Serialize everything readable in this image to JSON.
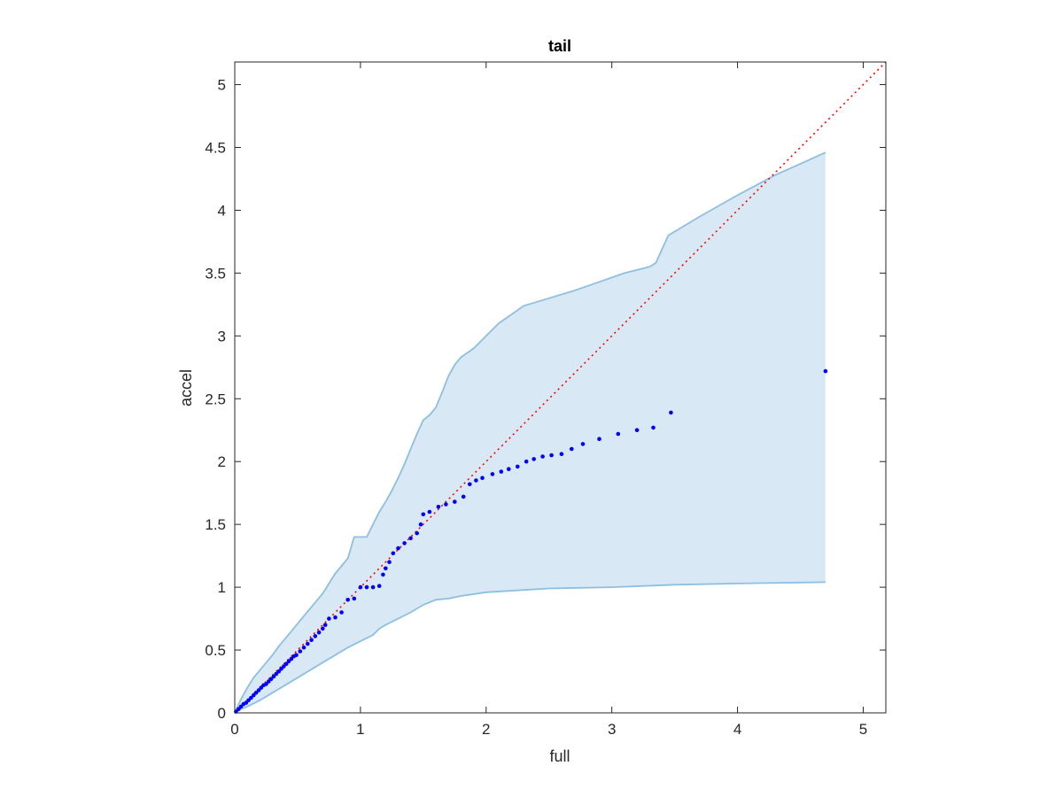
{
  "chart_data": {
    "type": "scatter",
    "title": "tail",
    "xlabel": "full",
    "ylabel": "accel",
    "xlim": [
      0,
      5.18
    ],
    "ylim": [
      0,
      5.18
    ],
    "grid": false,
    "box": true,
    "xticks": [
      0,
      1,
      2,
      3,
      4,
      5
    ],
    "yticks": [
      0,
      0.5,
      1,
      1.5,
      2,
      2.5,
      3,
      3.5,
      4,
      4.5,
      5
    ],
    "xtick_labels": [
      "0",
      "1",
      "2",
      "3",
      "4",
      "5"
    ],
    "ytick_labels": [
      "0",
      "0.5",
      "1",
      "1.5",
      "2",
      "2.5",
      "3",
      "3.5",
      "4",
      "4.5",
      "5"
    ],
    "colors": {
      "points": "#0000ff",
      "reference_line": "#ff0000",
      "band_fill": "#d9e8f5",
      "band_edge": "#8dbfe0",
      "axes": "#262626"
    },
    "reference_line": {
      "style": "dotted",
      "from": [
        0,
        0
      ],
      "to": [
        5.18,
        5.18
      ]
    },
    "band": {
      "upper": [
        [
          0,
          0
        ],
        [
          0.05,
          0.11
        ],
        [
          0.1,
          0.2
        ],
        [
          0.15,
          0.28
        ],
        [
          0.2,
          0.34
        ],
        [
          0.25,
          0.4
        ],
        [
          0.3,
          0.46
        ],
        [
          0.35,
          0.53
        ],
        [
          0.4,
          0.59
        ],
        [
          0.45,
          0.65
        ],
        [
          0.5,
          0.71
        ],
        [
          0.55,
          0.77
        ],
        [
          0.6,
          0.83
        ],
        [
          0.65,
          0.89
        ],
        [
          0.7,
          0.95
        ],
        [
          0.75,
          1.03
        ],
        [
          0.8,
          1.11
        ],
        [
          0.85,
          1.17
        ],
        [
          0.9,
          1.23
        ],
        [
          0.95,
          1.4
        ],
        [
          1.0,
          1.4
        ],
        [
          1.05,
          1.4
        ],
        [
          1.1,
          1.5
        ],
        [
          1.15,
          1.6
        ],
        [
          1.2,
          1.68
        ],
        [
          1.25,
          1.77
        ],
        [
          1.3,
          1.87
        ],
        [
          1.35,
          1.98
        ],
        [
          1.4,
          2.1
        ],
        [
          1.45,
          2.22
        ],
        [
          1.5,
          2.33
        ],
        [
          1.55,
          2.37
        ],
        [
          1.6,
          2.43
        ],
        [
          1.65,
          2.55
        ],
        [
          1.7,
          2.68
        ],
        [
          1.75,
          2.77
        ],
        [
          1.8,
          2.83
        ],
        [
          1.9,
          2.9
        ],
        [
          2.0,
          3.0
        ],
        [
          2.1,
          3.1
        ],
        [
          2.2,
          3.17
        ],
        [
          2.3,
          3.24
        ],
        [
          2.5,
          3.3
        ],
        [
          2.7,
          3.36
        ],
        [
          2.9,
          3.43
        ],
        [
          3.1,
          3.5
        ],
        [
          3.3,
          3.55
        ],
        [
          3.35,
          3.58
        ],
        [
          3.45,
          3.8
        ],
        [
          3.7,
          3.95
        ],
        [
          4.0,
          4.12
        ],
        [
          4.3,
          4.28
        ],
        [
          4.7,
          4.46
        ]
      ],
      "lower": [
        [
          0,
          0
        ],
        [
          0.05,
          0.03
        ],
        [
          0.1,
          0.05
        ],
        [
          0.2,
          0.1
        ],
        [
          0.3,
          0.16
        ],
        [
          0.4,
          0.22
        ],
        [
          0.5,
          0.28
        ],
        [
          0.6,
          0.34
        ],
        [
          0.7,
          0.4
        ],
        [
          0.8,
          0.46
        ],
        [
          0.9,
          0.52
        ],
        [
          1.0,
          0.57
        ],
        [
          1.1,
          0.62
        ],
        [
          1.15,
          0.67
        ],
        [
          1.2,
          0.7
        ],
        [
          1.3,
          0.75
        ],
        [
          1.4,
          0.8
        ],
        [
          1.5,
          0.86
        ],
        [
          1.6,
          0.9
        ],
        [
          1.7,
          0.91
        ],
        [
          1.8,
          0.93
        ],
        [
          2.0,
          0.96
        ],
        [
          2.5,
          0.99
        ],
        [
          3.0,
          1.0
        ],
        [
          3.5,
          1.02
        ],
        [
          4.0,
          1.03
        ],
        [
          4.7,
          1.04
        ]
      ]
    },
    "points": [
      [
        0.01,
        0.01
      ],
      [
        0.03,
        0.03
      ],
      [
        0.05,
        0.05
      ],
      [
        0.07,
        0.07
      ],
      [
        0.09,
        0.08
      ],
      [
        0.11,
        0.1
      ],
      [
        0.13,
        0.12
      ],
      [
        0.15,
        0.14
      ],
      [
        0.17,
        0.16
      ],
      [
        0.19,
        0.18
      ],
      [
        0.21,
        0.2
      ],
      [
        0.23,
        0.22
      ],
      [
        0.25,
        0.23
      ],
      [
        0.27,
        0.25
      ],
      [
        0.29,
        0.27
      ],
      [
        0.31,
        0.29
      ],
      [
        0.33,
        0.31
      ],
      [
        0.35,
        0.33
      ],
      [
        0.37,
        0.35
      ],
      [
        0.39,
        0.37
      ],
      [
        0.41,
        0.39
      ],
      [
        0.43,
        0.41
      ],
      [
        0.45,
        0.43
      ],
      [
        0.47,
        0.45
      ],
      [
        0.49,
        0.46
      ],
      [
        0.52,
        0.49
      ],
      [
        0.55,
        0.52
      ],
      [
        0.58,
        0.55
      ],
      [
        0.61,
        0.58
      ],
      [
        0.64,
        0.61
      ],
      [
        0.67,
        0.64
      ],
      [
        0.7,
        0.67
      ],
      [
        0.72,
        0.7
      ],
      [
        0.75,
        0.75
      ],
      [
        0.8,
        0.76
      ],
      [
        0.85,
        0.8
      ],
      [
        0.9,
        0.9
      ],
      [
        0.95,
        0.91
      ],
      [
        1.0,
        1.0
      ],
      [
        1.05,
        1.0
      ],
      [
        1.1,
        1.0
      ],
      [
        1.15,
        1.01
      ],
      [
        1.18,
        1.1
      ],
      [
        1.2,
        1.15
      ],
      [
        1.23,
        1.2
      ],
      [
        1.26,
        1.27
      ],
      [
        1.3,
        1.31
      ],
      [
        1.35,
        1.35
      ],
      [
        1.4,
        1.39
      ],
      [
        1.45,
        1.43
      ],
      [
        1.48,
        1.5
      ],
      [
        1.5,
        1.58
      ],
      [
        1.55,
        1.6
      ],
      [
        1.62,
        1.64
      ],
      [
        1.68,
        1.66
      ],
      [
        1.75,
        1.68
      ],
      [
        1.82,
        1.72
      ],
      [
        1.87,
        1.82
      ],
      [
        1.92,
        1.85
      ],
      [
        1.97,
        1.87
      ],
      [
        2.05,
        1.9
      ],
      [
        2.12,
        1.92
      ],
      [
        2.18,
        1.94
      ],
      [
        2.25,
        1.96
      ],
      [
        2.32,
        2.0
      ],
      [
        2.38,
        2.02
      ],
      [
        2.45,
        2.04
      ],
      [
        2.52,
        2.05
      ],
      [
        2.6,
        2.06
      ],
      [
        2.68,
        2.1
      ],
      [
        2.77,
        2.14
      ],
      [
        2.9,
        2.18
      ],
      [
        3.05,
        2.22
      ],
      [
        3.2,
        2.25
      ],
      [
        3.33,
        2.27
      ],
      [
        3.47,
        2.39
      ],
      [
        4.7,
        2.72
      ]
    ]
  }
}
